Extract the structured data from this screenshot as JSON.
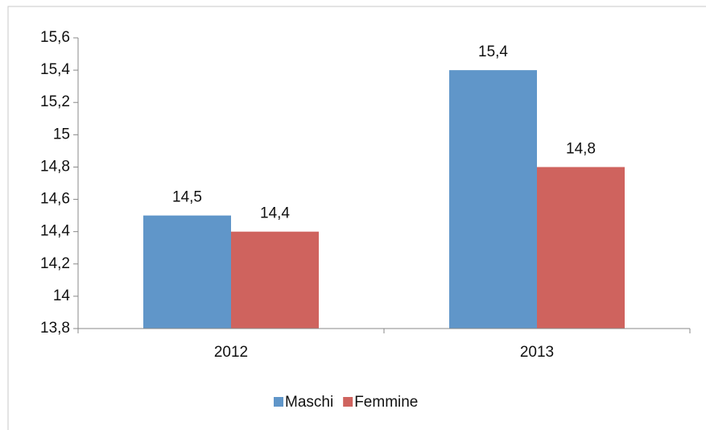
{
  "chart_data": {
    "type": "bar",
    "categories": [
      "2012",
      "2013"
    ],
    "series": [
      {
        "name": "Maschi",
        "color": "#6096c9",
        "values": [
          14.5,
          15.4
        ],
        "value_labels": [
          "14,5",
          "15,4"
        ]
      },
      {
        "name": "Femmine",
        "color": "#cf635e",
        "values": [
          14.4,
          14.8
        ],
        "value_labels": [
          "14,4",
          "14,8"
        ]
      }
    ],
    "ylim": [
      13.8,
      15.6
    ],
    "yticks": [
      {
        "value": 13.8,
        "label": "13,8"
      },
      14,
      {
        "value": 14.2,
        "label": "14,2"
      },
      {
        "value": 14.4,
        "label": "14,4"
      },
      {
        "value": 14.6,
        "label": "14,6"
      },
      {
        "value": 14.8,
        "label": "14,8"
      },
      15,
      {
        "value": 15.2,
        "label": "15,2"
      },
      {
        "value": 15.4,
        "label": "15,4"
      },
      {
        "value": 15.6,
        "label": "15,6"
      }
    ],
    "legend": "bottom"
  }
}
